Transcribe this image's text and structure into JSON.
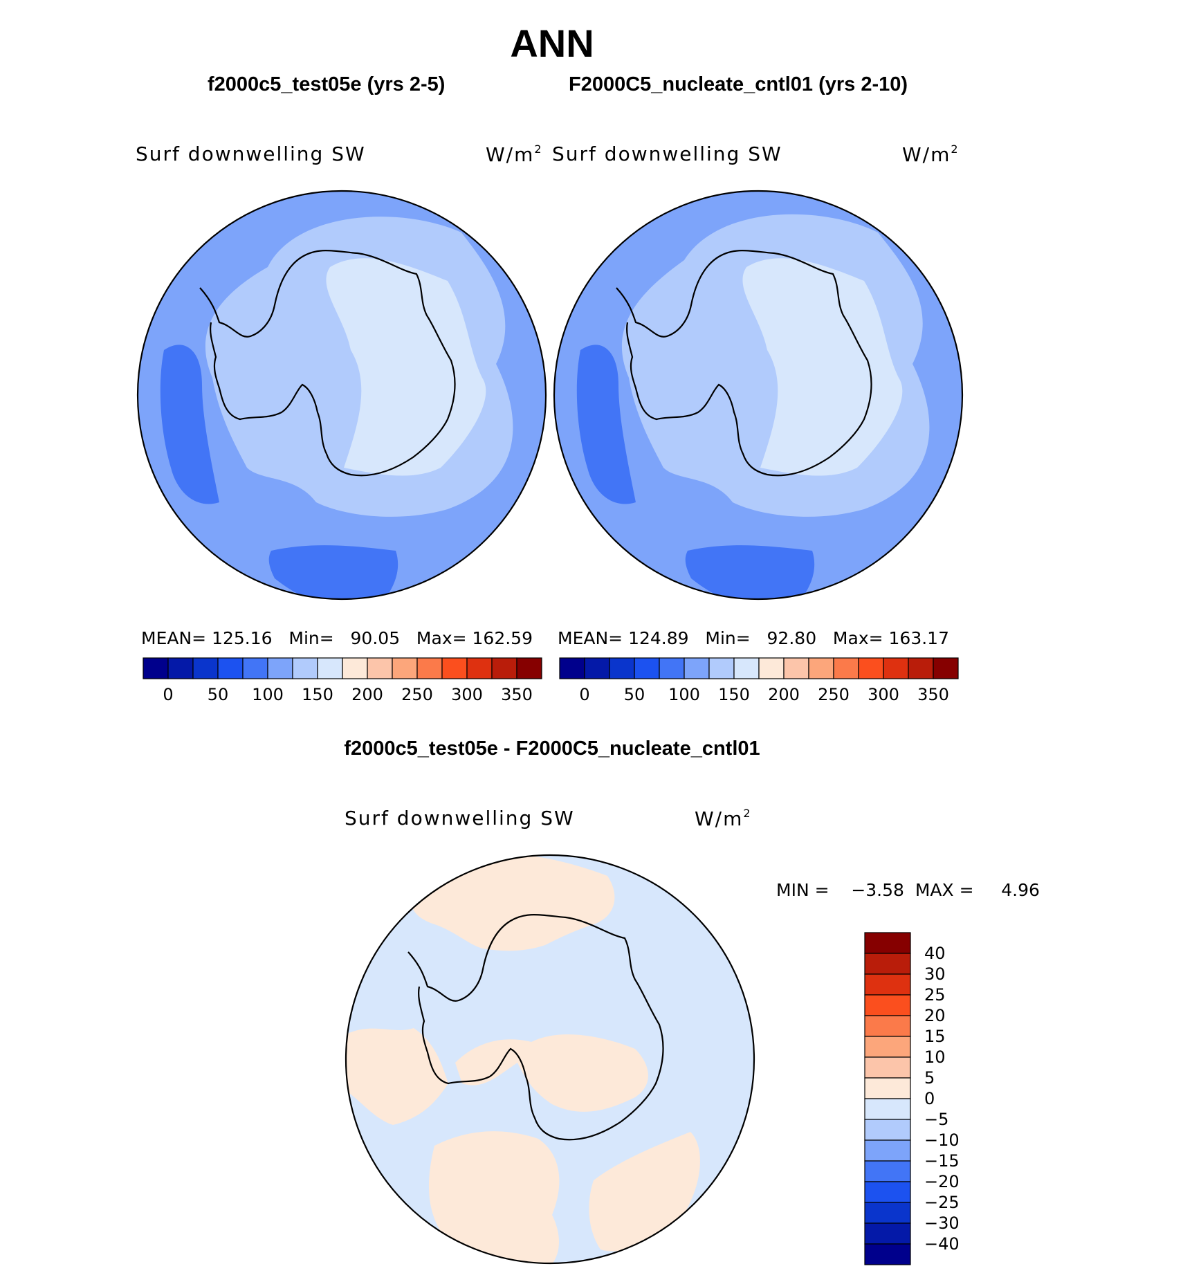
{
  "figure": {
    "title": "ANN",
    "panels": [
      {
        "title": "f2000c5_test05e (yrs 2-5)",
        "variable": "Surf downwelling SW",
        "units": "W/m",
        "units_exp": "2",
        "stats": "MEAN= 125.16   Min=   90.05   Max= 162.59",
        "region_levels": {
          "ocean_band": "100-125",
          "mid_zone": "125-150",
          "east_plateau": "150-175",
          "low_patches": "75-100"
        }
      },
      {
        "title": "F2000C5_nucleate_cntl01 (yrs 2-10)",
        "variable": "Surf downwelling SW",
        "units": "W/m",
        "units_exp": "2",
        "stats": "MEAN= 124.89   Min=   92.80   Max= 163.17",
        "region_levels": {
          "ocean_band": "100-125",
          "mid_zone": "125-150",
          "east_plateau": "150-175",
          "low_patches": "75-100"
        }
      }
    ],
    "diff": {
      "title": "f2000c5_test05e - F2000C5_nucleate_cntl01",
      "variable": "Surf downwelling SW",
      "units": "W/m",
      "units_exp": "2",
      "stats": "MIN =    −3.58  MAX =     4.96"
    }
  },
  "colorbar": {
    "colors": [
      "#00008c",
      "#0419a8",
      "#0a35cc",
      "#1c52f0",
      "#4275f6",
      "#7da4fa",
      "#b1cbfc",
      "#d7e7fc",
      "#fde9d9",
      "#fcc5aa",
      "#fca67b",
      "#fb7a4a",
      "#fb4f1e",
      "#de3110",
      "#b91d0a",
      "#860000"
    ],
    "tick_labels": [
      "0",
      "50",
      "100",
      "150",
      "200",
      "250",
      "300",
      "350"
    ]
  },
  "diff_colorbar": {
    "colors_top_to_bottom": [
      "#860000",
      "#b91d0a",
      "#de3110",
      "#fb4f1e",
      "#fb7a4a",
      "#fca67b",
      "#fcc5aa",
      "#fde9d9",
      "#d7e7fc",
      "#b1cbfc",
      "#7da4fa",
      "#4275f6",
      "#1c52f0",
      "#0a35cc",
      "#0419a8",
      "#00008c"
    ],
    "levels_top_to_bottom": [
      "40",
      "30",
      "25",
      "20",
      "15",
      "10",
      "5",
      "0",
      "−5",
      "−10",
      "−15",
      "−20",
      "−25",
      "−30",
      "−40"
    ]
  }
}
